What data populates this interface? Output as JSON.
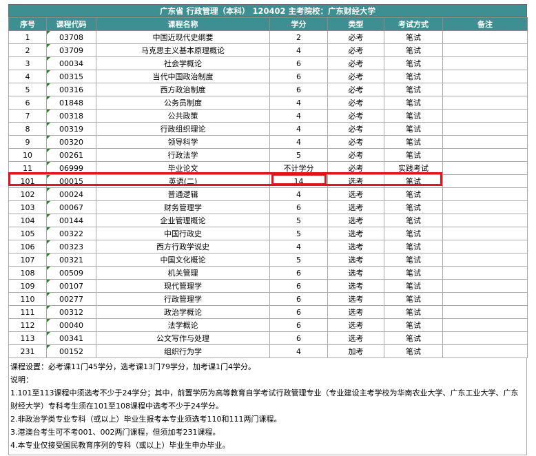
{
  "title": "广东省  行政管理（本科）  120402    主考院校：广东财经大学",
  "headers": [
    "序号",
    "课程代码",
    "课程名称",
    "学分",
    "类型",
    "考试方式",
    "备注"
  ],
  "rows": [
    [
      "1",
      "03708",
      "中国近现代史纲要",
      "2",
      "必考",
      "笔试",
      ""
    ],
    [
      "2",
      "03709",
      "马克思主义基本原理概论",
      "4",
      "必考",
      "笔试",
      ""
    ],
    [
      "3",
      "00034",
      "社会学概论",
      "6",
      "必考",
      "笔试",
      ""
    ],
    [
      "4",
      "00315",
      "当代中国政治制度",
      "6",
      "必考",
      "笔试",
      ""
    ],
    [
      "5",
      "00316",
      "西方政治制度",
      "6",
      "必考",
      "笔试",
      ""
    ],
    [
      "6",
      "01848",
      "公务员制度",
      "4",
      "必考",
      "笔试",
      ""
    ],
    [
      "7",
      "00318",
      "公共政策",
      "4",
      "必考",
      "笔试",
      ""
    ],
    [
      "8",
      "00319",
      "行政组织理论",
      "4",
      "必考",
      "笔试",
      ""
    ],
    [
      "9",
      "00320",
      "领导科学",
      "4",
      "必考",
      "笔试",
      ""
    ],
    [
      "10",
      "00261",
      "行政法学",
      "5",
      "必考",
      "笔试",
      ""
    ],
    [
      "11",
      "06999",
      "毕业论文",
      "不计学分",
      "必考",
      "实践考试",
      ""
    ],
    [
      "101",
      "00015",
      "英语(二)",
      "14",
      "选考",
      "笔试",
      ""
    ],
    [
      "102",
      "00024",
      "普通逻辑",
      "4",
      "选考",
      "笔试",
      ""
    ],
    [
      "103",
      "00067",
      "财务管理学",
      "6",
      "选考",
      "笔试",
      ""
    ],
    [
      "104",
      "00144",
      "企业管理概论",
      "5",
      "选考",
      "笔试",
      ""
    ],
    [
      "105",
      "00322",
      "中国行政史",
      "5",
      "选考",
      "笔试",
      ""
    ],
    [
      "106",
      "00323",
      "西方行政学说史",
      "4",
      "选考",
      "笔试",
      ""
    ],
    [
      "107",
      "00321",
      "中国文化概论",
      "5",
      "选考",
      "笔试",
      ""
    ],
    [
      "108",
      "00509",
      "机关管理",
      "6",
      "选考",
      "笔试",
      ""
    ],
    [
      "109",
      "00107",
      "现代管理学",
      "6",
      "选考",
      "笔试",
      ""
    ],
    [
      "110",
      "00277",
      "行政管理学",
      "6",
      "选考",
      "笔试",
      ""
    ],
    [
      "111",
      "00312",
      "政治学概论",
      "6",
      "选考",
      "笔试",
      ""
    ],
    [
      "112",
      "00040",
      "法学概论",
      "6",
      "选考",
      "笔试",
      ""
    ],
    [
      "113",
      "00341",
      "公文写作与处理",
      "6",
      "选考",
      "笔试",
      ""
    ],
    [
      "231",
      "00152",
      "组织行为学",
      "4",
      "加考",
      "笔试",
      ""
    ]
  ],
  "notes": [
    "课程设置：必考课11门45学分，选考课13门79学分，加考课1门4学分。",
    "说明：",
    "1.101至113课程中须选考不少于24学分；其中，前置学历为高等教育自学考试行政管理专业（专业建设主考学校为华南农业大学、广东工业大学、广东财经大学）专科考生须在101至108课程中选考不少于24学分。",
    "2.非政治学类专业专科（或以上）毕业生报考本专业须选考110和111两门课程。",
    "3.港澳台考生可不考001、002两门课程，但须加考231课程。",
    "4.本专业仅接受国民教育序列的专科（或以上）毕业生申办毕业。"
  ],
  "highlight_color": "#e0141e",
  "header_color": "#3d8f92"
}
